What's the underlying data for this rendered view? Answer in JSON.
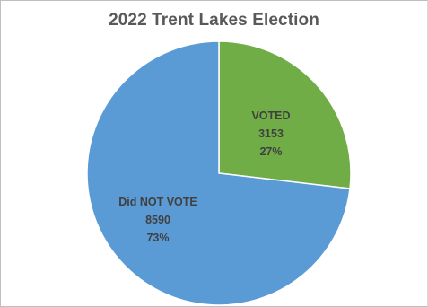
{
  "chart_data": {
    "type": "pie",
    "title": "2022 Trent Lakes Election",
    "slices": [
      {
        "label": "VOTED",
        "value": 3153,
        "percent": "27%",
        "color": "#70ad47"
      },
      {
        "label": "Did NOT VOTE",
        "value": 8590,
        "percent": "73%",
        "color": "#5b9bd5"
      }
    ],
    "start_angle_deg": 0,
    "direction": "clockwise",
    "legend": "none",
    "slice_border_color": "#ffffff"
  }
}
